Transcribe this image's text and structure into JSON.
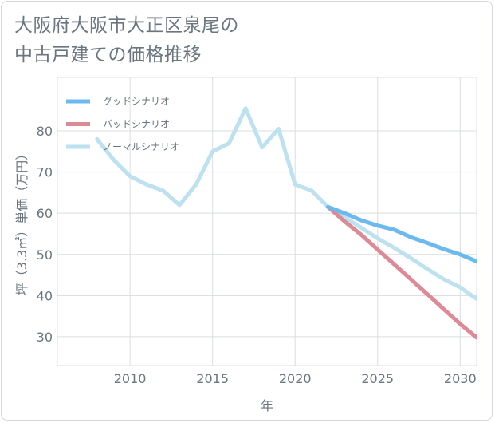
{
  "header": {
    "title_line1": "大阪府大阪市大正区泉尾の",
    "title_line2": "中古戸建ての価格推移"
  },
  "chart_data": {
    "type": "line",
    "title": "大阪府大阪市大正区泉尾の中古戸建ての価格推移",
    "xlabel": "年",
    "ylabel": "坪（3.3㎡）単価（万円）",
    "xlim": [
      2005.6,
      2031
    ],
    "ylim": [
      23,
      93
    ],
    "x_ticks": [
      2010,
      2015,
      2020,
      2025,
      2030
    ],
    "y_ticks": [
      30,
      40,
      50,
      60,
      70,
      80
    ],
    "grid": true,
    "legend_position": "top-left",
    "series": [
      {
        "name": "グッドシナリオ",
        "color": "#6cb9ee",
        "x": [
          2022,
          2023,
          2024,
          2025,
          2026,
          2027,
          2028,
          2029,
          2030,
          2031
        ],
        "values": [
          61.5,
          60.0,
          58.3,
          57.0,
          56.0,
          54.2,
          52.8,
          51.3,
          50.0,
          48.3
        ]
      },
      {
        "name": "バッドシナリオ",
        "color": "#dc8a96",
        "x": [
          2022,
          2023,
          2024,
          2025,
          2026,
          2027,
          2028,
          2029,
          2030,
          2031
        ],
        "values": [
          61.5,
          58.0,
          54.8,
          51.2,
          47.6,
          44.0,
          40.4,
          36.7,
          33.1,
          29.8
        ]
      },
      {
        "name": "ノーマルシナリオ",
        "color": "#bde1ef",
        "x": [
          2008,
          2009,
          2010,
          2011,
          2012,
          2013,
          2014,
          2015,
          2016,
          2017,
          2018,
          2019,
          2020,
          2021,
          2022,
          2023,
          2024,
          2025,
          2026,
          2027,
          2028,
          2029,
          2030,
          2031
        ],
        "values": [
          78.0,
          73.0,
          69.0,
          67.0,
          65.5,
          62.0,
          67.0,
          75.0,
          77.0,
          85.5,
          76.0,
          80.5,
          67.0,
          65.5,
          61.5,
          59.0,
          56.5,
          53.9,
          51.6,
          49.1,
          46.5,
          44.0,
          42.0,
          39.2
        ]
      }
    ]
  }
}
